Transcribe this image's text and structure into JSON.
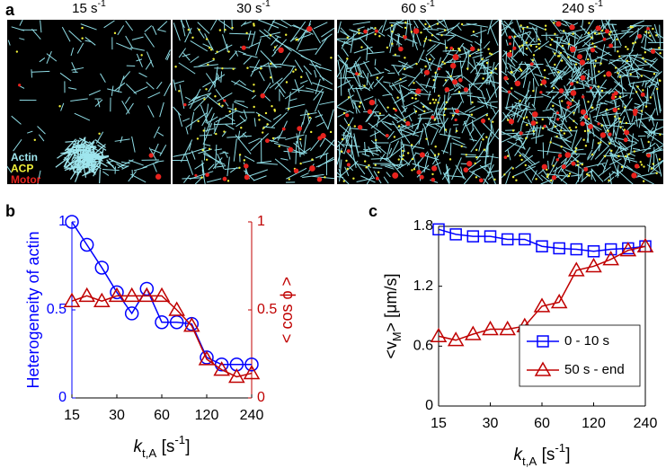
{
  "panel_letters": {
    "a": "a",
    "b": "b",
    "c": "c"
  },
  "panel_a": {
    "titles": [
      {
        "text": "15 s",
        "superscript": "-1"
      },
      {
        "text": "30 s",
        "superscript": "-1"
      },
      {
        "text": "60 s",
        "superscript": "-1"
      },
      {
        "text": "240 s",
        "superscript": "-1"
      }
    ],
    "legend": [
      {
        "name": "Actin",
        "color": "#9fe6ee"
      },
      {
        "name": "ACP",
        "color": "#f2f23a"
      },
      {
        "name": "Motor",
        "color": "#e8231e"
      }
    ]
  },
  "chart_data": [
    {
      "type": "line",
      "xscale": "log",
      "x": [
        15,
        18.9,
        23.8,
        30,
        37.8,
        47.6,
        60,
        75.6,
        95.2,
        120,
        151.2,
        190.5,
        240
      ],
      "xlim": [
        15,
        240
      ],
      "xticks": [
        15,
        30,
        60,
        120,
        240
      ],
      "xlabel": {
        "symbol": "k",
        "subscript": "t,A",
        "unit": " [s",
        "superscript": "-1",
        "close": "]"
      },
      "ylabel": "Heterogeneity of actin",
      "y_color": "#0000ff",
      "ylim": [
        0,
        1
      ],
      "yticks": [
        0,
        0.5,
        1
      ],
      "y2label": "< cos ϕ >",
      "y2_color": "#c00000",
      "y2lim": [
        0,
        1
      ],
      "y2ticks": [
        0,
        0.5,
        1
      ],
      "series": [
        {
          "color": "#0000ff",
          "marker": "circle",
          "axis": "y",
          "values": [
            1.0,
            0.87,
            0.74,
            0.6,
            0.48,
            0.62,
            0.43,
            0.43,
            0.42,
            0.23,
            0.19,
            0.19,
            0.19
          ]
        },
        {
          "color": "#c00000",
          "marker": "triangle",
          "axis": "y2",
          "values": [
            0.55,
            0.58,
            0.55,
            0.58,
            0.58,
            0.58,
            0.58,
            0.5,
            0.41,
            0.22,
            0.16,
            0.12,
            0.14
          ]
        }
      ]
    },
    {
      "type": "line",
      "xscale": "log",
      "x": [
        15,
        18.9,
        23.8,
        30,
        37.8,
        47.6,
        60,
        75.6,
        95.2,
        120,
        151.2,
        190.5,
        240
      ],
      "xlim": [
        15,
        240
      ],
      "xticks": [
        15,
        30,
        60,
        120,
        240
      ],
      "xlabel": {
        "symbol": "k",
        "subscript": "t,A",
        "unit": " [s",
        "superscript": "-1",
        "close": "]"
      },
      "ylabel": {
        "open": "<v",
        "subscript": "M",
        "rest": "> [μm/s]"
      },
      "ylim": [
        0,
        1.8
      ],
      "yticks": [
        0,
        0.6,
        1.2,
        1.8
      ],
      "legend": "lower right",
      "series": [
        {
          "name": "0 - 10 s",
          "color": "#0000ff",
          "marker": "square",
          "values": [
            1.77,
            1.72,
            1.7,
            1.7,
            1.67,
            1.67,
            1.6,
            1.58,
            1.57,
            1.55,
            1.57,
            1.58,
            1.6
          ]
        },
        {
          "name": "50 s - end",
          "color": "#c00000",
          "marker": "triangle",
          "values": [
            0.7,
            0.66,
            0.72,
            0.77,
            0.77,
            0.8,
            1.0,
            1.04,
            1.36,
            1.4,
            1.47,
            1.56,
            1.6
          ]
        }
      ]
    }
  ]
}
